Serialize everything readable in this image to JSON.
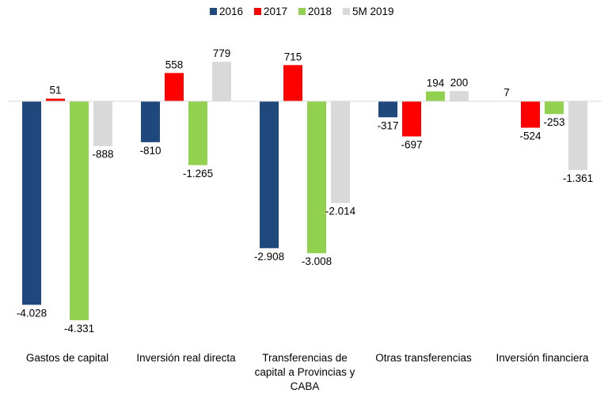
{
  "chart_data": {
    "type": "bar",
    "categories": [
      [
        "Gastos de capital"
      ],
      [
        "Inversión real directa"
      ],
      [
        "Transferencias de",
        "capital a Provincias y",
        "CABA"
      ],
      [
        "Otras transferencias"
      ],
      [
        "Inversión financiera"
      ]
    ],
    "series": [
      {
        "name": "2016",
        "color": "#1f497d",
        "values": [
          -4028,
          -810,
          -2908,
          -317,
          7
        ],
        "labels": [
          "-4.028",
          "-810",
          "-2.908",
          "-317",
          "7"
        ]
      },
      {
        "name": "2017",
        "color": "#ff0000",
        "values": [
          51,
          558,
          715,
          -697,
          -524
        ],
        "labels": [
          "51",
          "558",
          "715",
          "-697",
          "-524"
        ]
      },
      {
        "name": "2018",
        "color": "#92d050",
        "values": [
          -4331,
          -1265,
          -3008,
          194,
          -253
        ],
        "labels": [
          "-4.331",
          "-1.265",
          "-3.008",
          "194",
          "-253"
        ]
      },
      {
        "name": "5M 2019",
        "color": "#d9d9d9",
        "values": [
          -888,
          779,
          -2014,
          200,
          -1361
        ],
        "labels": [
          "-888",
          "779",
          "-2.014",
          "200",
          "-1.361"
        ]
      }
    ],
    "ylim": [
      -4331,
      779
    ],
    "grid": false,
    "legend_position": "top-center"
  }
}
